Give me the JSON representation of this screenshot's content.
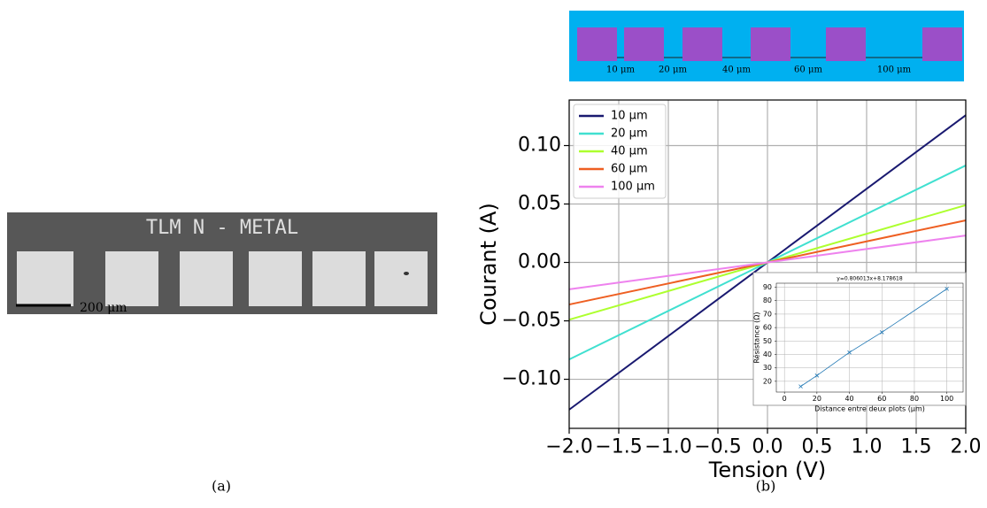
{
  "figure": {
    "panel_a": {
      "label": "(a)",
      "image_title": "TLM N - METAL",
      "scale_bar": "200 μm"
    },
    "panel_b": {
      "label": "(b)",
      "spacings": [
        "10 μm",
        "20 μm",
        "40 μm",
        "60 μm",
        "100 μm"
      ]
    }
  },
  "chart_data": [
    {
      "type": "line",
      "xlabel": "Tension (V)",
      "ylabel": "Courant (A)",
      "x": [
        -2,
        0,
        2
      ],
      "series": [
        {
          "name": "10 µm",
          "color": "#191970",
          "values": [
            -0.126,
            0,
            0.126
          ]
        },
        {
          "name": "20 µm",
          "color": "#40e0d0",
          "values": [
            -0.083,
            0,
            0.083
          ]
        },
        {
          "name": "40 µm",
          "color": "#adff2f",
          "values": [
            -0.049,
            0,
            0.049
          ]
        },
        {
          "name": "60 µm",
          "color": "#ee5f22",
          "values": [
            -0.036,
            0,
            0.036
          ]
        },
        {
          "name": "100 µm",
          "color": "#ee82ee",
          "values": [
            -0.023,
            0,
            0.023
          ]
        }
      ],
      "xlim": [
        -2,
        2
      ],
      "ylim": [
        -0.142,
        0.139
      ],
      "xticks": [
        {
          "value": -2,
          "label": "−2.0"
        },
        {
          "value": -1.5,
          "label": "−1.5"
        },
        {
          "value": -1,
          "label": "−1.0"
        },
        {
          "value": -0.5,
          "label": "−0.5"
        },
        {
          "value": 0,
          "label": "0.0"
        },
        {
          "value": 0.5,
          "label": "0.5"
        },
        {
          "value": 1,
          "label": "1.0"
        },
        {
          "value": 1.5,
          "label": "1.5"
        },
        {
          "value": 2,
          "label": "2.0"
        }
      ],
      "yticks": [
        {
          "value": -0.1,
          "label": "−0.10"
        },
        {
          "value": -0.05,
          "label": "−0.05"
        },
        {
          "value": 0,
          "label": "0.00"
        },
        {
          "value": 0.05,
          "label": "0.05"
        },
        {
          "value": 0.1,
          "label": "0.10"
        }
      ],
      "grid": true,
      "legend": "upper left"
    },
    {
      "type": "line",
      "title": "y=0.806013x+8.178618",
      "xlabel": "Distance entre deux plots (µm)",
      "ylabel": "Résistance (Ω)",
      "x": [
        10,
        20,
        40,
        60,
        100
      ],
      "values": [
        16.2,
        24.3,
        41.5,
        56.5,
        88.8
      ],
      "color": "#1f77b4",
      "marker": "x",
      "xlim": [
        -5,
        110
      ],
      "ylim": [
        12,
        93
      ],
      "xticks": [
        0,
        20,
        40,
        60,
        80,
        100
      ],
      "yticks": [
        20,
        30,
        40,
        50,
        60,
        70,
        80,
        90
      ],
      "grid": true
    }
  ]
}
